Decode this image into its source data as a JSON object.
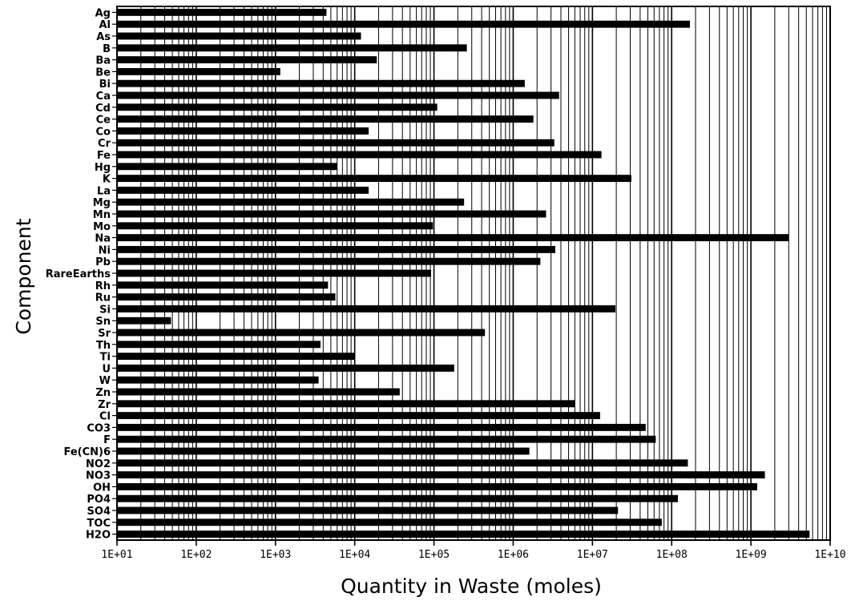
{
  "chart_data": {
    "type": "bar",
    "orientation": "horizontal",
    "xscale": "log",
    "xlim": [
      10,
      10000000000
    ],
    "xlabel": "Quantity in Waste (moles)",
    "ylabel": "Component",
    "grid": "vertical minor and major",
    "xticks": [
      "1E+01",
      "1E+02",
      "1E+03",
      "1E+04",
      "1E+05",
      "1E+06",
      "1E+07",
      "1E+08",
      "1E+09",
      "1E+10"
    ],
    "categories": [
      "Ag",
      "Al",
      "As",
      "B",
      "Ba",
      "Be",
      "Bi",
      "Ca",
      "Cd",
      "Ce",
      "Co",
      "Cr",
      "Fe",
      "Hg",
      "K",
      "La",
      "Mg",
      "Mn",
      "Mo",
      "Na",
      "Ni",
      "Pb",
      "RareEarths",
      "Rh",
      "Ru",
      "Si",
      "Sn",
      "Sr",
      "Th",
      "Ti",
      "U",
      "W",
      "Zn",
      "Zr",
      "Cl",
      "CO3",
      "F",
      "Fe(CN)6",
      "NO2",
      "NO3",
      "OH",
      "PO4",
      "SO4",
      "TOC",
      "H2O"
    ],
    "values": [
      4400,
      170000000,
      12000,
      260000,
      19000,
      1150,
      1400000,
      3800000,
      110000,
      1800000,
      15000,
      3300000,
      13000000,
      6000,
      31000000,
      15000,
      240000,
      2600000,
      97000,
      3000000000,
      3400000,
      2200000,
      92000,
      4600,
      5700,
      19500000,
      48,
      440000,
      3700,
      10000,
      180000,
      3500,
      37000,
      6000000,
      12500000,
      47000000,
      63000000,
      1600000,
      160000000,
      1500000000,
      1200000000,
      120000000,
      21000000,
      75000000,
      5500000000
    ]
  }
}
